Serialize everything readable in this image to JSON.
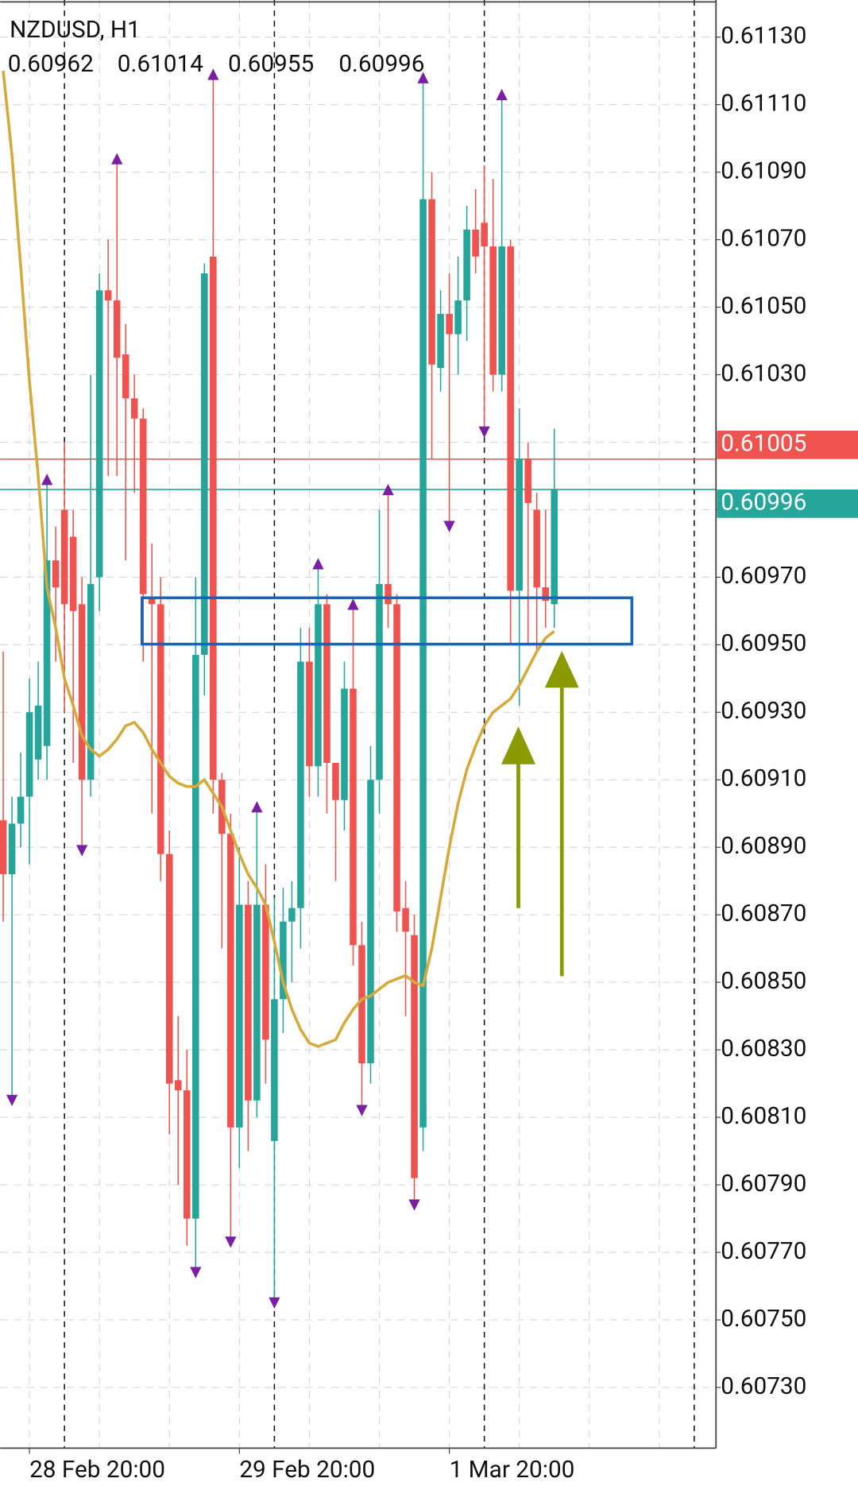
{
  "chart_data": {
    "type": "candlestick",
    "title": "NZDUSD, H1",
    "categories": [
      null,
      null,
      null,
      "28 Feb 20:00",
      null,
      null,
      null,
      null,
      null,
      null,
      null,
      null,
      null,
      null,
      null,
      null,
      null,
      null,
      null,
      null,
      null,
      null,
      null,
      null,
      null,
      null,
      null,
      "29 Feb 20:00",
      null,
      null,
      null,
      null,
      null,
      null,
      null,
      null,
      null,
      null,
      null,
      null,
      null,
      null,
      null,
      null,
      null,
      null,
      null,
      null,
      null,
      null,
      null,
      "1 Mar 20:00",
      null,
      null,
      null,
      null,
      null,
      null,
      null,
      null,
      null,
      null,
      null,
      null
    ],
    "open": [
      0.60898,
      0.60882,
      0.60897,
      0.60905,
      0.60916,
      0.6092,
      0.60975,
      0.6099,
      0.60982,
      0.60962,
      0.6091,
      0.6097,
      0.61055,
      0.61052,
      0.61036,
      0.61023,
      0.61017,
      0.60964,
      0.60962,
      0.60888,
      0.60821,
      0.60818,
      0.6078,
      0.60947,
      0.61065,
      0.6091,
      0.60894,
      0.60807,
      0.60873,
      0.60815,
      0.60873,
      0.60803,
      0.60845,
      0.60868,
      0.60872,
      0.60945,
      0.60914,
      0.60962,
      0.60915,
      0.60904,
      0.60937,
      0.60861,
      0.60826,
      0.6091,
      0.60968,
      0.60962,
      0.60872,
      0.60864,
      0.60807,
      0.61082,
      0.61032,
      0.61048,
      0.61042,
      0.61052,
      0.61073,
      0.61075,
      0.61068,
      0.6103,
      0.61068,
      0.60966,
      0.61005,
      0.6099,
      0.60967,
      0.60962
    ],
    "high": [
      0.60948,
      0.60905,
      0.60918,
      0.6094,
      0.60945,
      0.60999,
      0.60985,
      0.6101,
      0.6099,
      0.6097,
      0.6103,
      0.6106,
      0.6107,
      0.61094,
      0.61045,
      0.6103,
      0.6102,
      0.6098,
      0.6097,
      0.60895,
      0.6084,
      0.6083,
      0.6097,
      0.61063,
      0.61119,
      0.60912,
      0.609,
      0.6089,
      0.6088,
      0.60902,
      0.60885,
      0.60875,
      0.60878,
      0.6088,
      0.60955,
      0.60955,
      0.60974,
      0.60965,
      0.60915,
      0.60945,
      0.60962,
      0.60868,
      0.6092,
      0.6099,
      0.60996,
      0.60965,
      0.6088,
      0.6087,
      0.61118,
      0.6109,
      0.61055,
      0.6106,
      0.61065,
      0.6108,
      0.61085,
      0.61092,
      0.61088,
      0.61113,
      0.6107,
      0.6102,
      0.6101,
      0.60995,
      0.6099,
      0.61014
    ],
    "low": [
      0.60868,
      0.60815,
      0.6089,
      0.60885,
      0.6091,
      0.6091,
      0.60945,
      0.6093,
      0.60915,
      0.60889,
      0.60905,
      0.6096,
      0.61,
      0.61,
      0.60975,
      0.60995,
      0.60945,
      0.609,
      0.6088,
      0.60805,
      0.6079,
      0.60772,
      0.60764,
      0.60935,
      0.609,
      0.6086,
      0.60773,
      0.60795,
      0.608,
      0.6081,
      0.6082,
      0.60755,
      0.60835,
      0.6085,
      0.6086,
      0.60905,
      0.60905,
      0.609,
      0.6088,
      0.60895,
      0.60855,
      0.60812,
      0.6082,
      0.609,
      0.60955,
      0.60865,
      0.6084,
      0.60784,
      0.608,
      0.61005,
      0.61025,
      0.60985,
      0.6103,
      0.6104,
      0.6106,
      0.61013,
      0.61025,
      0.61025,
      0.6095,
      0.60932,
      0.6095,
      0.60948,
      0.60955,
      0.60955
    ],
    "close": [
      0.60882,
      0.60897,
      0.60905,
      0.6093,
      0.60932,
      0.60975,
      0.60967,
      0.60962,
      0.6096,
      0.6091,
      0.60968,
      0.61055,
      0.61052,
      0.61035,
      0.61023,
      0.61017,
      0.60965,
      0.60962,
      0.60888,
      0.6082,
      0.60818,
      0.6078,
      0.60947,
      0.6106,
      0.6091,
      0.60894,
      0.60807,
      0.60873,
      0.60815,
      0.60873,
      0.60833,
      0.60845,
      0.60868,
      0.60872,
      0.60945,
      0.60914,
      0.60962,
      0.60915,
      0.60904,
      0.60937,
      0.60861,
      0.60826,
      0.6091,
      0.60968,
      0.60962,
      0.60871,
      0.60865,
      0.60792,
      0.61082,
      0.61033,
      0.61048,
      0.61042,
      0.61052,
      0.61073,
      0.61065,
      0.61068,
      0.6103,
      0.61068,
      0.60966,
      0.61005,
      0.60992,
      0.60967,
      0.60963,
      0.60996
    ],
    "up_color": "#26a69a",
    "down_color": "#ef5350",
    "moving_average": {
      "color": "#d4aa3c",
      "values": [
        0.6112,
        0.61095,
        0.61062,
        0.61028,
        0.61,
        0.60967,
        0.60955,
        0.6094,
        0.60932,
        0.60923,
        0.60919,
        0.60917,
        0.60919,
        0.60922,
        0.60926,
        0.60927,
        0.60924,
        0.60919,
        0.60915,
        0.60911,
        0.60909,
        0.60908,
        0.60908,
        0.6091,
        0.60906,
        0.60902,
        0.60895,
        0.60888,
        0.60882,
        0.60878,
        0.60873,
        0.60862,
        0.6085,
        0.60842,
        0.60836,
        0.60832,
        0.60831,
        0.60832,
        0.60833,
        0.60838,
        0.60842,
        0.60845,
        0.60846,
        0.60848,
        0.6085,
        0.60851,
        0.60852,
        0.6085,
        0.60849,
        0.6086,
        0.60875,
        0.6089,
        0.60903,
        0.60913,
        0.6092,
        0.60926,
        0.6093,
        0.60932,
        0.60934,
        0.60938,
        0.60943,
        0.60948,
        0.60952,
        0.60954
      ]
    },
    "fractals_up": {
      "color": "#7b1fa2",
      "values": [
        null,
        null,
        null,
        null,
        null,
        0.60999,
        null,
        null,
        null,
        null,
        null,
        null,
        null,
        0.61094,
        null,
        null,
        null,
        null,
        null,
        null,
        null,
        null,
        null,
        null,
        0.61119,
        null,
        null,
        null,
        null,
        0.60902,
        null,
        null,
        null,
        null,
        null,
        null,
        0.60974,
        null,
        null,
        null,
        0.60962,
        null,
        null,
        null,
        0.60996,
        null,
        null,
        null,
        0.61118,
        null,
        null,
        null,
        null,
        null,
        null,
        null,
        null,
        0.61113,
        null,
        null,
        null,
        null,
        null,
        null
      ]
    },
    "fractals_down": {
      "color": "#7b1fa2",
      "values": [
        null,
        0.60815,
        null,
        null,
        null,
        null,
        null,
        null,
        null,
        0.60889,
        null,
        null,
        null,
        null,
        null,
        null,
        null,
        null,
        null,
        null,
        null,
        null,
        0.60764,
        null,
        null,
        null,
        0.60773,
        null,
        null,
        null,
        null,
        0.60755,
        null,
        null,
        null,
        null,
        null,
        null,
        null,
        null,
        null,
        0.60812,
        null,
        null,
        null,
        null,
        null,
        0.60784,
        null,
        null,
        null,
        0.60985,
        null,
        null,
        null,
        0.61013,
        null,
        null,
        null,
        null,
        null,
        null,
        null,
        null
      ]
    },
    "price_lines": [
      {
        "value": 0.61005,
        "color": "#ef5350"
      },
      {
        "value": 0.60996,
        "color": "#26a69a"
      }
    ],
    "ylim": [
      0.60712,
      0.61141
    ],
    "yticks": [
      {
        "value": 0.6113,
        "label": "0.61130"
      },
      {
        "value": 0.6111,
        "label": "0.61110"
      },
      {
        "value": 0.6109,
        "label": "0.61090"
      },
      {
        "value": 0.6107,
        "label": "0.61070"
      },
      {
        "value": 0.6105,
        "label": "0.61050"
      },
      {
        "value": 0.6103,
        "label": "0.61030"
      },
      {
        "value": 0.6101,
        "label": "0.61010"
      },
      {
        "value": 0.6099,
        "label": "0.60990"
      },
      {
        "value": 0.6097,
        "label": "0.60970"
      },
      {
        "value": 0.6095,
        "label": "0.60950"
      },
      {
        "value": 0.6093,
        "label": "0.60930"
      },
      {
        "value": 0.6091,
        "label": "0.60910"
      },
      {
        "value": 0.6089,
        "label": "0.60890"
      },
      {
        "value": 0.6087,
        "label": "0.60870"
      },
      {
        "value": 0.6085,
        "label": "0.60850"
      },
      {
        "value": 0.6083,
        "label": "0.60830"
      },
      {
        "value": 0.6081,
        "label": "0.60810"
      },
      {
        "value": 0.6079,
        "label": "0.60790"
      },
      {
        "value": 0.6077,
        "label": "0.60770"
      },
      {
        "value": 0.6075,
        "label": "0.60750"
      },
      {
        "value": 0.6073,
        "label": "0.60730"
      }
    ],
    "grid": true
  }
}
